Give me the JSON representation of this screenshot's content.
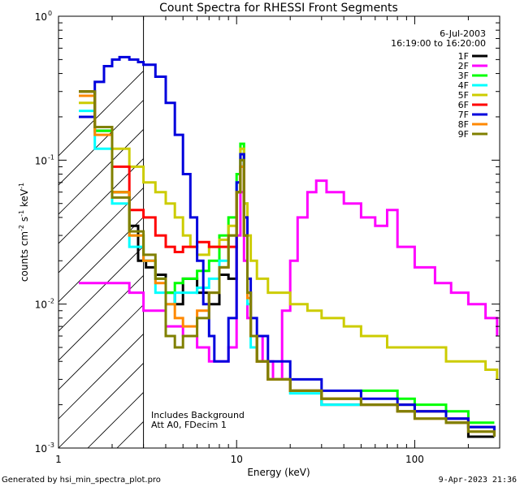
{
  "chart_data": {
    "type": "line",
    "title": "Count Spectra for RHESSI Front Segments",
    "xlabel": "Energy (keV)",
    "ylabel_main": "counts cm",
    "ylabel_sup1": "-2",
    "ylabel_mid": " s",
    "ylabel_sup2": "-1",
    "ylabel_end": " keV",
    "ylabel_sup3": "-1",
    "x_scale": "log",
    "y_scale": "log",
    "xlim": [
      1,
      300
    ],
    "ylim": [
      0.001,
      1
    ],
    "x_ticks": [
      {
        "value": 1,
        "label": "1"
      },
      {
        "value": 10,
        "label": "10"
      },
      {
        "value": 100,
        "label": "100"
      }
    ],
    "y_ticks": [
      {
        "value": 0.001,
        "base": "10",
        "exp": "-3"
      },
      {
        "value": 0.01,
        "base": "10",
        "exp": "-2"
      },
      {
        "value": 0.1,
        "base": "10",
        "exp": "-1"
      },
      {
        "value": 1,
        "base": "10",
        "exp": "0"
      }
    ],
    "date": "6-Jul-2003",
    "time_range": "16:19:00 to 16:20:00",
    "legend_position": "top-right",
    "hatched_region_xmax": 3,
    "annotation_lines": [
      "Includes Background",
      "Att A0, FDecim 1"
    ],
    "footer_left": "Generated by hsi_min_spectra_plot.pro",
    "footer_right": "9-Apr-2023 21:36",
    "series": [
      {
        "name": "1F",
        "color": "#000000",
        "x": [
          1.3,
          1.6,
          2.0,
          2.5,
          2.8,
          3.1,
          3.5,
          4.0,
          4.5,
          5.0,
          6.0,
          7.0,
          8.0,
          9.0,
          10.0,
          10.5,
          11.0,
          11.5,
          12,
          13,
          15,
          20,
          30,
          50,
          80,
          100,
          150,
          200,
          280
        ],
        "y": [
          0.3,
          0.16,
          0.06,
          0.035,
          0.02,
          0.018,
          0.016,
          0.012,
          0.01,
          0.015,
          0.012,
          0.01,
          0.016,
          0.015,
          0.06,
          0.1,
          0.03,
          0.012,
          0.006,
          0.004,
          0.003,
          0.0025,
          0.002,
          0.002,
          0.0018,
          0.0018,
          0.0015,
          0.0012,
          0.0012
        ]
      },
      {
        "name": "2F",
        "color": "#ff00ff",
        "x": [
          1.3,
          1.6,
          2.0,
          2.5,
          3.0,
          4.0,
          5.0,
          6.0,
          7.0,
          8.0,
          9.0,
          10.0,
          10.5,
          11.0,
          11.5,
          12,
          14,
          16,
          18,
          20,
          22,
          25,
          28,
          32,
          40,
          50,
          60,
          70,
          80,
          100,
          130,
          160,
          200,
          250,
          290
        ],
        "y": [
          0.014,
          0.014,
          0.014,
          0.012,
          0.009,
          0.007,
          0.006,
          0.005,
          0.004,
          0.004,
          0.005,
          0.03,
          0.06,
          0.02,
          0.008,
          0.006,
          0.004,
          0.003,
          0.009,
          0.02,
          0.04,
          0.06,
          0.072,
          0.06,
          0.05,
          0.04,
          0.035,
          0.045,
          0.025,
          0.018,
          0.014,
          0.012,
          0.01,
          0.008,
          0.006
        ]
      },
      {
        "name": "3F",
        "color": "#00ff00",
        "x": [
          1.3,
          1.6,
          2.0,
          2.5,
          3.0,
          3.5,
          4.0,
          4.5,
          5.0,
          6.0,
          7.0,
          8.0,
          9.0,
          10.0,
          10.5,
          11.0,
          11.5,
          12,
          13,
          15,
          20,
          30,
          50,
          80,
          100,
          150,
          200,
          280
        ],
        "y": [
          0.3,
          0.16,
          0.06,
          0.03,
          0.02,
          0.015,
          0.012,
          0.014,
          0.015,
          0.017,
          0.02,
          0.03,
          0.04,
          0.08,
          0.13,
          0.05,
          0.012,
          0.006,
          0.004,
          0.003,
          0.0025,
          0.0022,
          0.0025,
          0.0022,
          0.002,
          0.0018,
          0.0015,
          0.0015
        ]
      },
      {
        "name": "4F",
        "color": "#00ffff",
        "x": [
          1.3,
          1.6,
          2.0,
          2.5,
          3.0,
          3.5,
          4.0,
          4.5,
          5.0,
          6.0,
          7.0,
          8.0,
          9.0,
          10.0,
          10.5,
          11.0,
          11.5,
          12,
          13,
          15,
          20,
          30,
          50,
          80,
          100,
          150,
          200,
          280
        ],
        "y": [
          0.22,
          0.12,
          0.05,
          0.025,
          0.02,
          0.012,
          0.01,
          0.012,
          0.012,
          0.013,
          0.015,
          0.02,
          0.03,
          0.07,
          0.1,
          0.04,
          0.01,
          0.005,
          0.004,
          0.003,
          0.0024,
          0.002,
          0.002,
          0.002,
          0.0018,
          0.0016,
          0.0014,
          0.0013
        ]
      },
      {
        "name": "5F",
        "color": "#cccc00",
        "x": [
          1.3,
          1.6,
          2.0,
          2.5,
          3.0,
          3.5,
          4.0,
          4.5,
          5.0,
          5.5,
          6.0,
          7.0,
          8.0,
          9.0,
          10.0,
          10.5,
          11.0,
          11.5,
          12,
          13,
          15,
          18,
          20,
          25,
          30,
          40,
          50,
          70,
          100,
          150,
          200,
          250,
          290
        ],
        "y": [
          0.25,
          0.17,
          0.12,
          0.09,
          0.07,
          0.06,
          0.05,
          0.04,
          0.03,
          0.025,
          0.022,
          0.025,
          0.028,
          0.035,
          0.06,
          0.12,
          0.05,
          0.03,
          0.02,
          0.015,
          0.012,
          0.012,
          0.01,
          0.009,
          0.008,
          0.007,
          0.006,
          0.005,
          0.005,
          0.004,
          0.004,
          0.0035,
          0.003
        ]
      },
      {
        "name": "6F",
        "color": "#ff0000",
        "x": [
          1.3,
          1.6,
          2.0,
          2.5,
          3.0,
          3.5,
          4.0,
          4.5,
          5.0,
          6.0,
          7.0,
          8.0,
          9.0,
          10.0,
          10.5,
          11.0,
          11.5,
          12,
          13,
          15,
          20,
          30,
          50,
          80,
          100,
          150,
          200,
          280
        ],
        "y": [
          0.3,
          0.17,
          0.09,
          0.045,
          0.04,
          0.03,
          0.025,
          0.023,
          0.025,
          0.027,
          0.025,
          0.025,
          0.025,
          0.06,
          0.09,
          0.03,
          0.012,
          0.006,
          0.004,
          0.003,
          0.0025,
          0.0022,
          0.002,
          0.002,
          0.0018,
          0.0016,
          0.0014,
          0.0013
        ]
      },
      {
        "name": "7F",
        "color": "#0000dd",
        "x": [
          1.3,
          1.6,
          1.8,
          2.0,
          2.2,
          2.5,
          2.8,
          3.0,
          3.5,
          4.0,
          4.5,
          5.0,
          5.5,
          6.0,
          6.5,
          7.0,
          7.5,
          8.0,
          9.0,
          10.0,
          10.5,
          11.0,
          11.5,
          12,
          13,
          15,
          20,
          30,
          50,
          80,
          100,
          150,
          200,
          280
        ],
        "y": [
          0.2,
          0.35,
          0.45,
          0.5,
          0.52,
          0.5,
          0.48,
          0.46,
          0.38,
          0.25,
          0.15,
          0.08,
          0.04,
          0.02,
          0.01,
          0.006,
          0.004,
          0.004,
          0.008,
          0.07,
          0.11,
          0.04,
          0.015,
          0.008,
          0.006,
          0.004,
          0.003,
          0.0025,
          0.0022,
          0.002,
          0.0018,
          0.0016,
          0.0014,
          0.0012
        ]
      },
      {
        "name": "8F",
        "color": "#ff8800",
        "x": [
          1.3,
          1.6,
          2.0,
          2.5,
          3.0,
          3.5,
          4.0,
          4.5,
          5.0,
          6.0,
          7.0,
          8.0,
          9.0,
          10.0,
          10.5,
          11.0,
          11.5,
          12,
          13,
          15,
          20,
          30,
          50,
          80,
          100,
          150,
          200,
          280
        ],
        "y": [
          0.28,
          0.15,
          0.06,
          0.03,
          0.02,
          0.014,
          0.01,
          0.008,
          0.007,
          0.009,
          0.012,
          0.018,
          0.03,
          0.06,
          0.09,
          0.03,
          0.011,
          0.006,
          0.004,
          0.003,
          0.0025,
          0.0022,
          0.002,
          0.0018,
          0.0016,
          0.0015,
          0.0013,
          0.0012
        ]
      },
      {
        "name": "9F",
        "color": "#808000",
        "x": [
          1.3,
          1.6,
          2.0,
          2.5,
          3.0,
          3.5,
          4.0,
          4.5,
          5.0,
          6.0,
          7.0,
          8.0,
          9.0,
          10.0,
          10.5,
          11.0,
          11.5,
          12,
          13,
          15,
          20,
          30,
          50,
          80,
          100,
          150,
          200,
          280
        ],
        "y": [
          0.3,
          0.17,
          0.055,
          0.032,
          0.022,
          0.015,
          0.006,
          0.005,
          0.006,
          0.008,
          0.012,
          0.018,
          0.03,
          0.06,
          0.1,
          0.03,
          0.012,
          0.006,
          0.004,
          0.003,
          0.0025,
          0.0022,
          0.002,
          0.0018,
          0.0016,
          0.0015,
          0.0013,
          0.0012
        ]
      }
    ]
  }
}
